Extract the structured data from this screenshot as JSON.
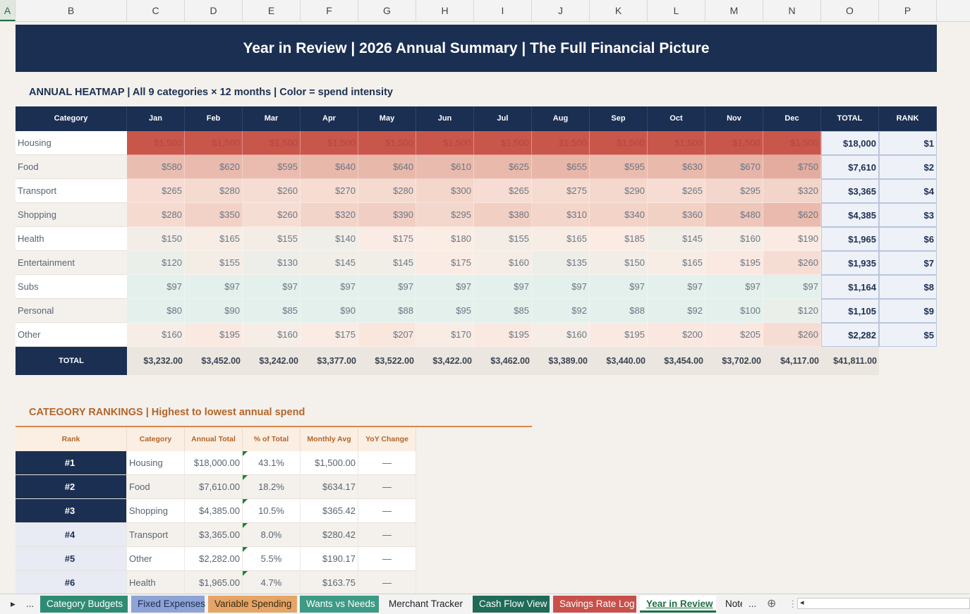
{
  "columns": [
    "A",
    "B",
    "C",
    "D",
    "E",
    "F",
    "G",
    "H",
    "I",
    "J",
    "K",
    "L",
    "M",
    "N",
    "O",
    "P"
  ],
  "banner": "Year in Review  |  2026 Annual Summary  |  The Full Financial Picture",
  "heatmap": {
    "title": "ANNUAL HEATMAP  |  All 9 categories × 12 months  |  Color = spend intensity",
    "headers": [
      "Category",
      "Jan",
      "Feb",
      "Mar",
      "Apr",
      "May",
      "Jun",
      "Jul",
      "Aug",
      "Sep",
      "Oct",
      "Nov",
      "Dec",
      "TOTAL",
      "RANK"
    ],
    "rows": [
      {
        "cat": "Housing",
        "vals": [
          1500,
          1500,
          1500,
          1500,
          1500,
          1500,
          1500,
          1500,
          1500,
          1500,
          1500,
          1500
        ],
        "total": "$18,000",
        "rank": "$1"
      },
      {
        "cat": "Food",
        "vals": [
          580,
          620,
          595,
          640,
          640,
          610,
          625,
          655,
          595,
          630,
          670,
          750
        ],
        "total": "$7,610",
        "rank": "$2"
      },
      {
        "cat": "Transport",
        "vals": [
          265,
          280,
          260,
          270,
          280,
          300,
          265,
          275,
          290,
          265,
          295,
          320
        ],
        "total": "$3,365",
        "rank": "$4"
      },
      {
        "cat": "Shopping",
        "vals": [
          280,
          350,
          260,
          320,
          390,
          295,
          380,
          310,
          340,
          360,
          480,
          620
        ],
        "total": "$4,385",
        "rank": "$3"
      },
      {
        "cat": "Health",
        "vals": [
          150,
          165,
          155,
          140,
          175,
          180,
          155,
          165,
          185,
          145,
          160,
          190
        ],
        "total": "$1,965",
        "rank": "$6"
      },
      {
        "cat": "Entertainment",
        "vals": [
          120,
          155,
          130,
          145,
          145,
          175,
          160,
          135,
          150,
          165,
          195,
          260
        ],
        "total": "$1,935",
        "rank": "$7"
      },
      {
        "cat": "Subs",
        "vals": [
          97,
          97,
          97,
          97,
          97,
          97,
          97,
          97,
          97,
          97,
          97,
          97
        ],
        "total": "$1,164",
        "rank": "$8"
      },
      {
        "cat": "Personal",
        "vals": [
          80,
          90,
          85,
          90,
          88,
          95,
          85,
          92,
          88,
          92,
          100,
          120
        ],
        "total": "$1,105",
        "rank": "$9"
      },
      {
        "cat": "Other",
        "vals": [
          160,
          195,
          160,
          175,
          207,
          170,
          195,
          160,
          195,
          200,
          205,
          260
        ],
        "total": "$2,282",
        "rank": "$5"
      }
    ],
    "total_label": "TOTAL",
    "monthly_totals": [
      "$3,232.00",
      "$3,452.00",
      "$3,242.00",
      "$3,377.00",
      "$3,522.00",
      "$3,422.00",
      "$3,462.00",
      "$3,389.00",
      "$3,440.00",
      "$3,454.00",
      "$3,702.00",
      "$4,117.00",
      "$41,811.00"
    ]
  },
  "rankings": {
    "title": "CATEGORY RANKINGS  |  Highest to lowest annual spend",
    "headers": [
      "Rank",
      "Category",
      "Annual Total",
      "% of Total",
      "Monthly Avg",
      "YoY Change"
    ],
    "rows": [
      [
        "#1",
        "Housing",
        "$18,000.00",
        "43.1%",
        "$1,500.00",
        "—"
      ],
      [
        "#2",
        "Food",
        "$7,610.00",
        "18.2%",
        "$634.17",
        "—"
      ],
      [
        "#3",
        "Shopping",
        "$4,385.00",
        "10.5%",
        "$365.42",
        "—"
      ],
      [
        "#4",
        "Transport",
        "$3,365.00",
        "8.0%",
        "$280.42",
        "—"
      ],
      [
        "#5",
        "Other",
        "$2,282.00",
        "5.5%",
        "$190.17",
        "—"
      ],
      [
        "#6",
        "Health",
        "$1,965.00",
        "4.7%",
        "$163.75",
        "—"
      ]
    ]
  },
  "tabs": [
    {
      "label": "Category Budgets",
      "bg": "#2e8b74",
      "fg": "#ffffff"
    },
    {
      "label": "Fixed Expenses",
      "bg": "#8ea3d6",
      "fg": "#1b2f52"
    },
    {
      "label": "Variable Spending",
      "bg": "#e5a567",
      "fg": "#3a2a12"
    },
    {
      "label": "Wants vs Needs",
      "bg": "#3d9a84",
      "fg": "#ffffff"
    },
    {
      "label": "Merchant Tracker",
      "bg": "#f3f3f3",
      "fg": "#222222"
    },
    {
      "label": "Cash Flow View",
      "bg": "#1f6b58",
      "fg": "#ffffff"
    },
    {
      "label": "Savings Rate Log",
      "bg": "#c9504a",
      "fg": "#ffffff"
    },
    {
      "label": "Year in Review",
      "bg": "#ffffff",
      "fg": "#1d6f42",
      "active": true
    },
    {
      "label": "Note",
      "bg": "#f3f3f3",
      "fg": "#222222"
    }
  ],
  "tab_nav": {
    "prev": "▸",
    "more": "...",
    "more_right": "...",
    "add": "⊕",
    "menu": "⋮",
    "scroll_left": "◂"
  },
  "colors": {
    "navy": "#1b2f52",
    "orange_text": "#b3652a",
    "orange_line": "#d9874a",
    "hot": "#c9564b",
    "cool": "#e3f0ec"
  }
}
